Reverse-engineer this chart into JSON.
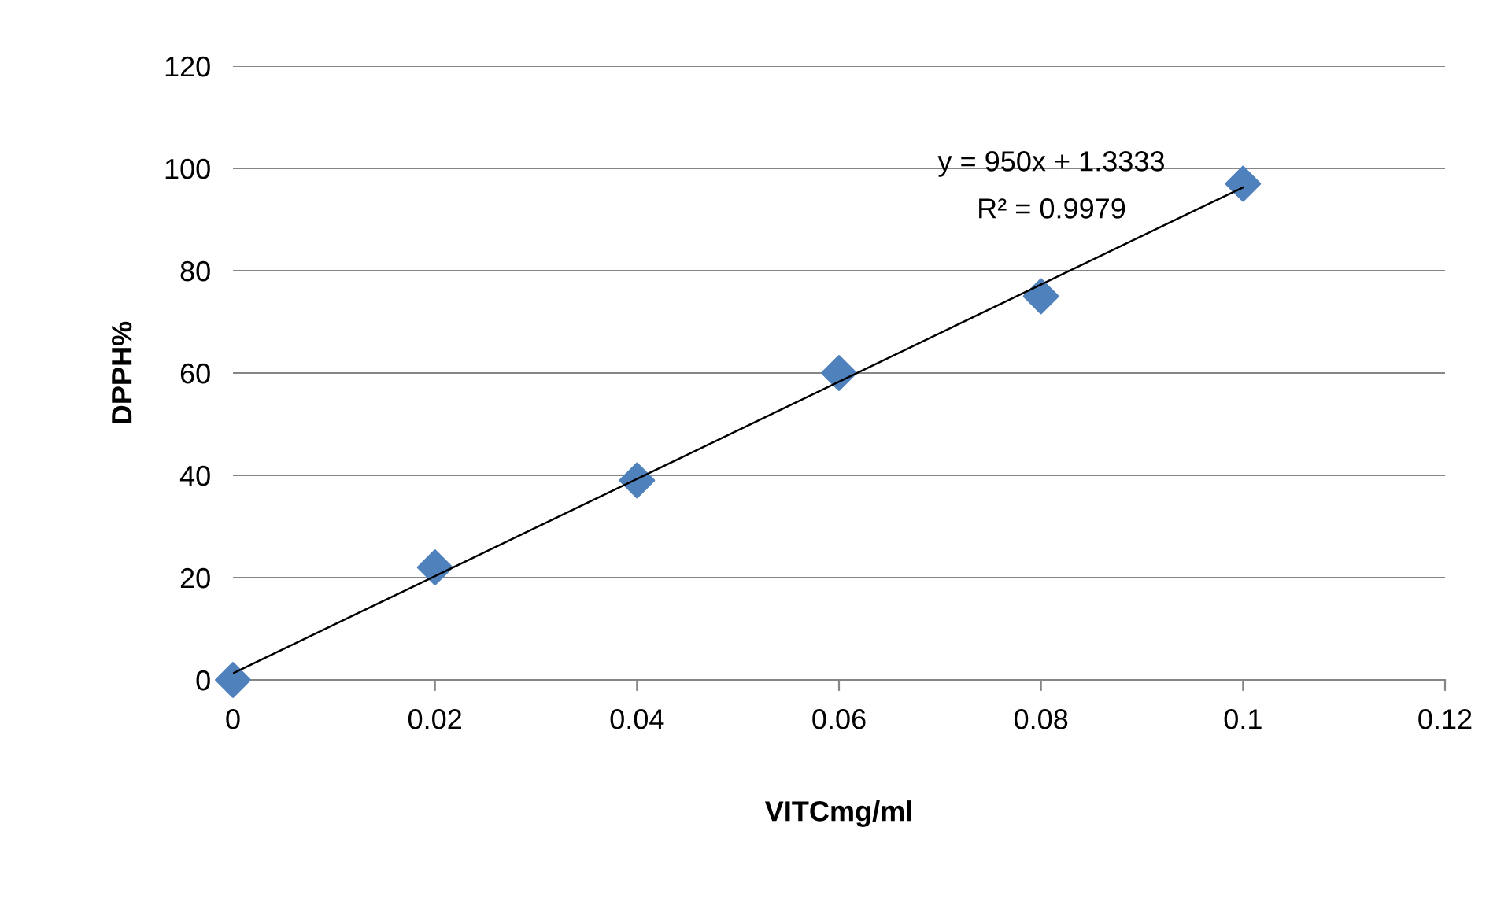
{
  "chart_data": {
    "type": "scatter",
    "xlabel": "VITCmg/ml",
    "ylabel": "DPPH%",
    "series": [
      {
        "color": "#4f81bd",
        "marker": "diamond",
        "x": [
          0,
          0.02,
          0.04,
          0.06,
          0.08,
          0.1
        ],
        "values": [
          0,
          22,
          39,
          60,
          75,
          97
        ]
      },
      {
        "type": "line",
        "color": "#000000",
        "marker": "none",
        "line_style": "solid",
        "x": [
          0,
          0.1
        ],
        "values": [
          1.3,
          96.3
        ]
      }
    ],
    "annotations": [
      "y = 950x + 1.3333",
      "R² = 0.9979"
    ],
    "xlim": [
      0,
      0.12
    ],
    "xticks": [
      0,
      0.02,
      0.04,
      0.06,
      0.08,
      0.1,
      0.12
    ],
    "ylim": [
      0,
      120
    ],
    "yticks": [
      0,
      20,
      40,
      60,
      80,
      100,
      120
    ],
    "grid": "y",
    "legend": false
  }
}
